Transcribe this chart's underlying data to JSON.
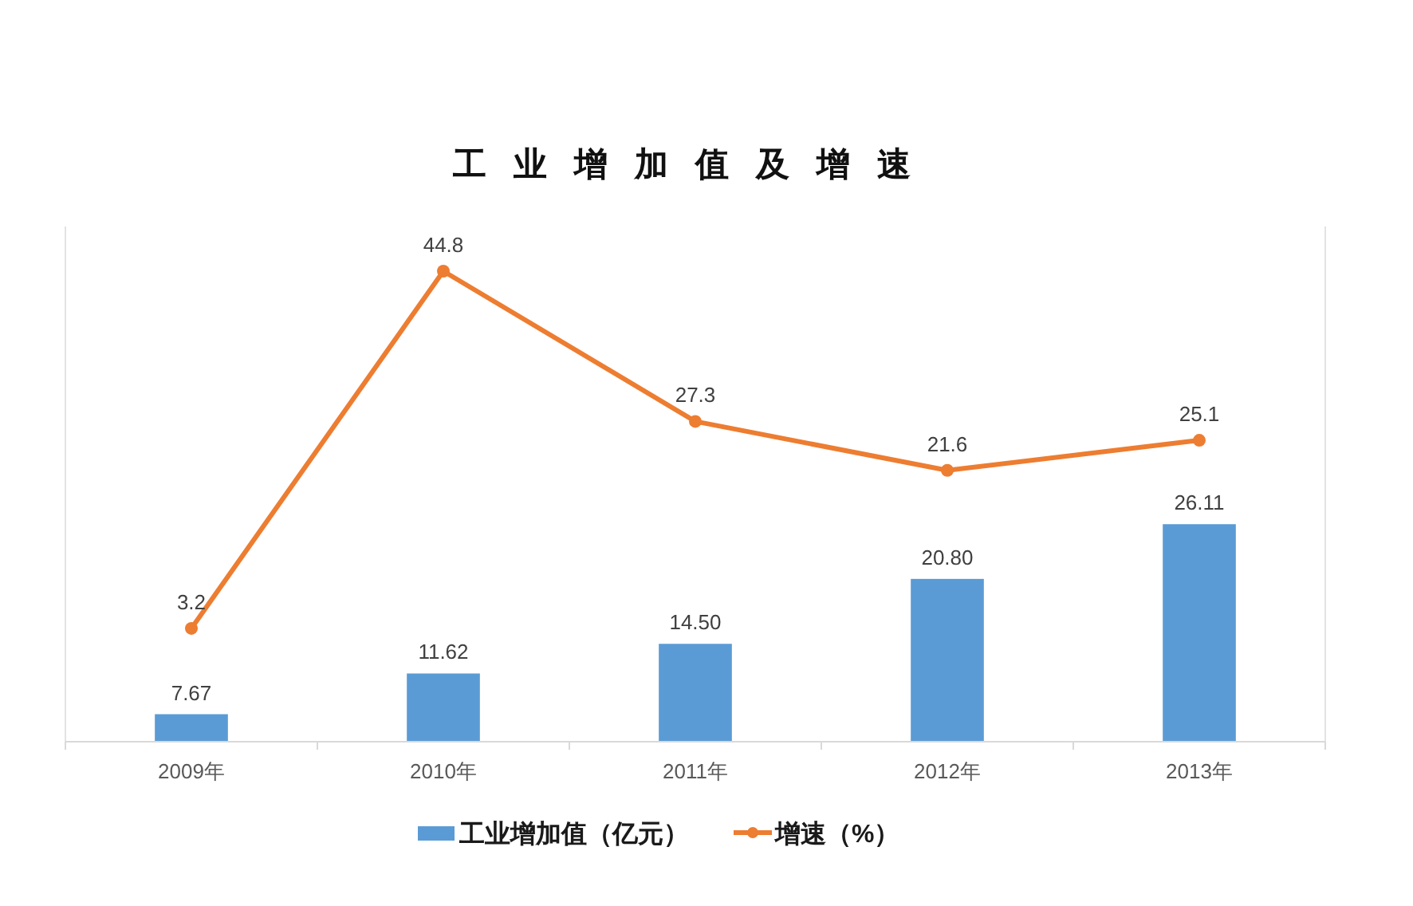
{
  "chart_data": {
    "type": "bar",
    "title": "工业增加值及增速",
    "categories": [
      "2009年",
      "2010年",
      "2011年",
      "2012年",
      "2013年"
    ],
    "series": [
      {
        "name": "工业增加值（亿元）",
        "color": "#5b9bd5",
        "values": [
          7.67,
          11.62,
          14.5,
          20.8,
          26.11
        ],
        "value_labels": [
          "7.67",
          "11.62",
          "14.50",
          "20.80",
          "26.11"
        ]
      },
      {
        "name": "增速（%）",
        "type": "line",
        "axis": "y2",
        "color": "#ed7d31",
        "marker": "circle",
        "values": [
          3.2,
          44.8,
          27.3,
          21.6,
          25.1
        ],
        "value_labels": [
          "3.2",
          "44.8",
          "27.3",
          "21.6",
          "25.1"
        ]
      }
    ],
    "ylim": [
      5,
      55
    ],
    "y2lim": [
      -10,
      50
    ],
    "tick_labels": "x",
    "legend": "bottom"
  }
}
